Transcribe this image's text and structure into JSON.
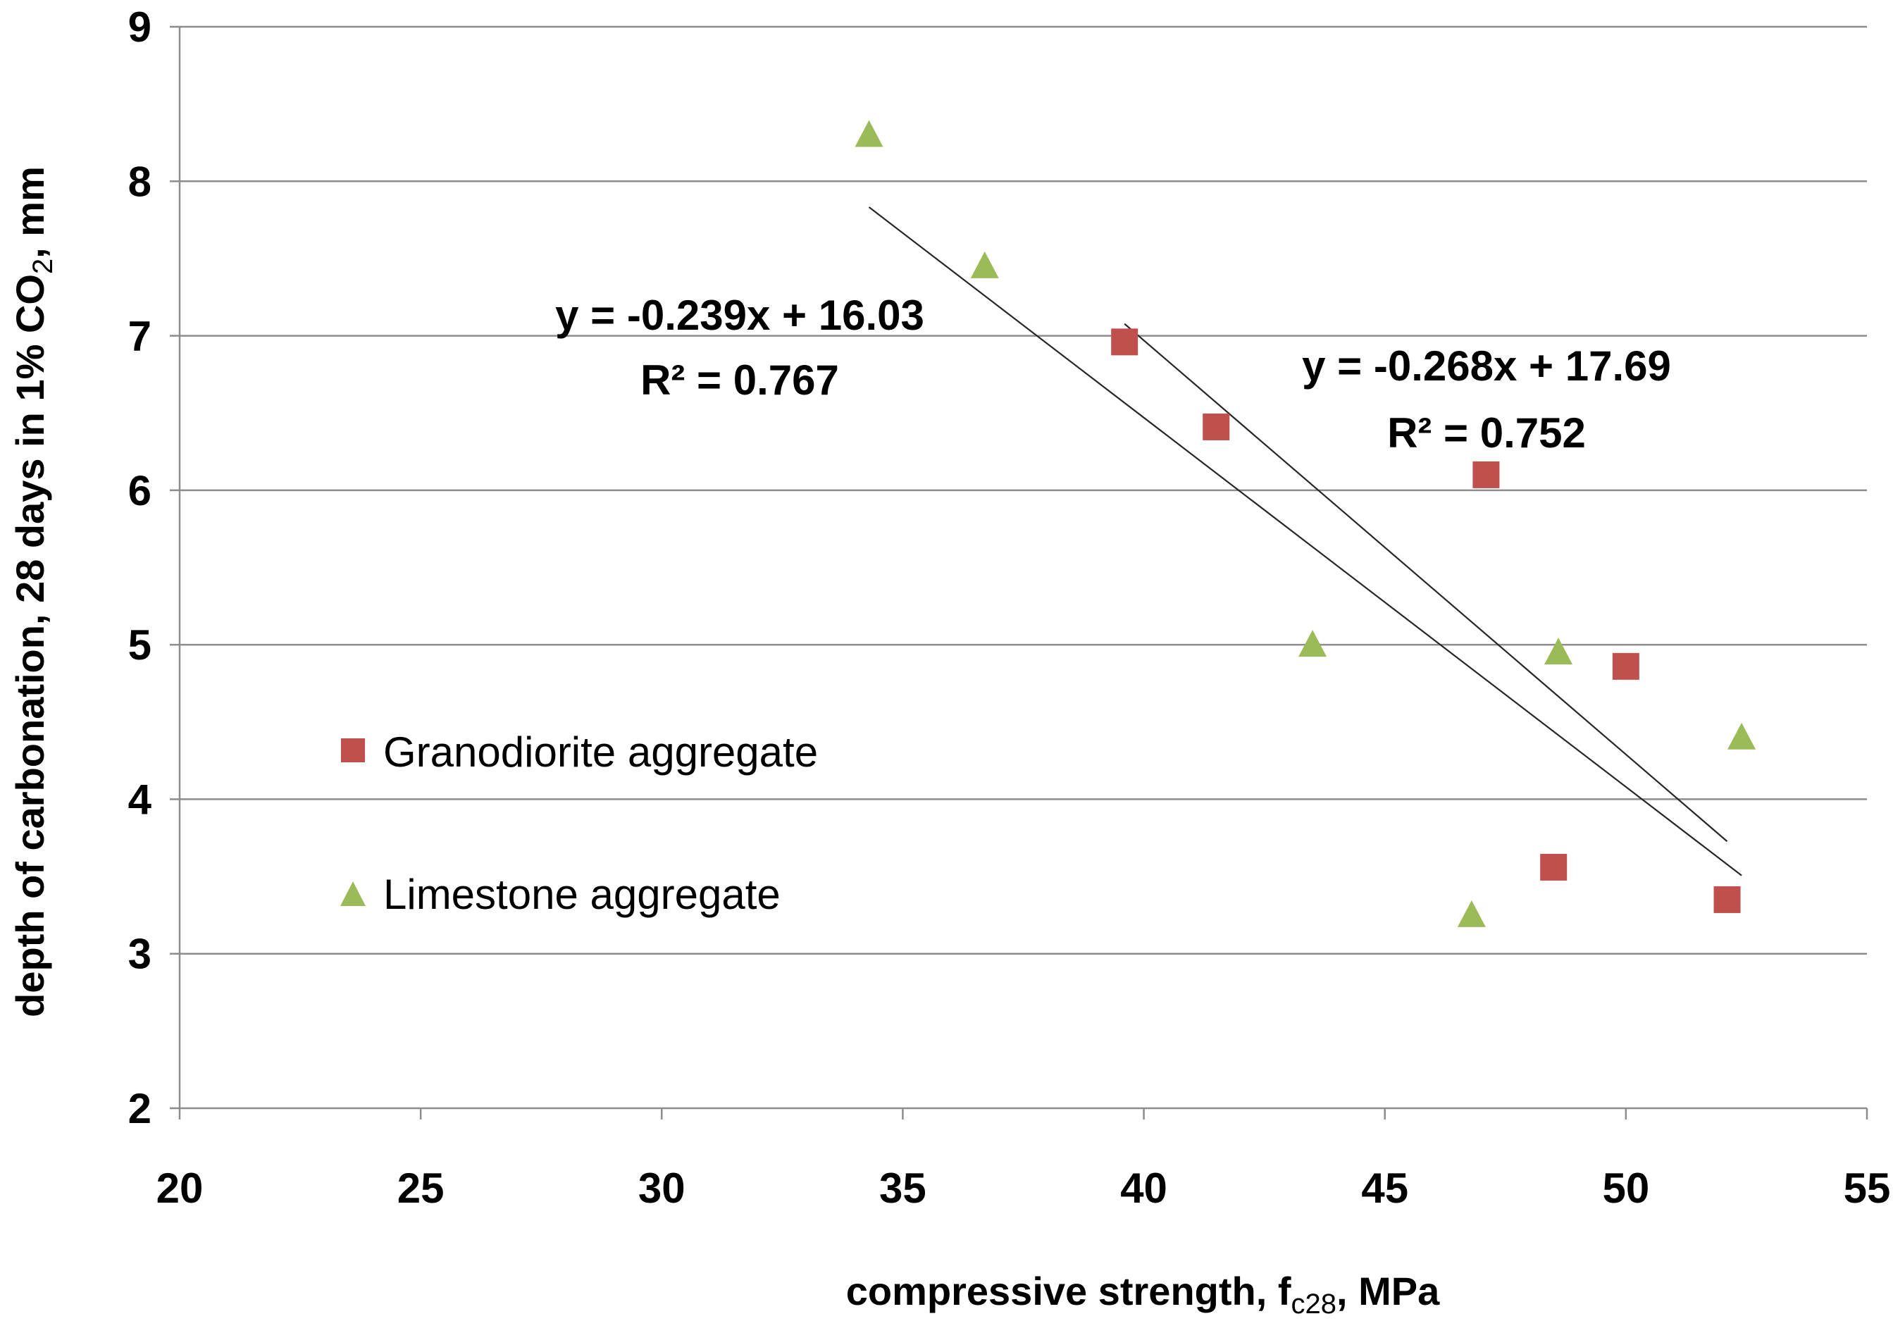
{
  "chart_data": {
    "type": "scatter",
    "title": "",
    "xlabel": {
      "main": "compressive strength, f",
      "sub": "c28",
      "tail": ", MPa"
    },
    "ylabel": {
      "main": "depth of carbonation, 28 days in 1% CO",
      "sub": "2",
      "tail": ", mm"
    },
    "xlim": [
      20,
      55
    ],
    "ylim": [
      2,
      9
    ],
    "xticks": [
      20,
      25,
      30,
      35,
      40,
      45,
      50,
      55
    ],
    "yticks": [
      2,
      3,
      4,
      5,
      6,
      7,
      8,
      9
    ],
    "grid": "horizontal",
    "legend_position": "left-middle",
    "series": [
      {
        "name": "Granodiorite aggregate",
        "marker": "square",
        "color": "#c0504d",
        "points": [
          [
            39.6,
            6.96
          ],
          [
            41.5,
            6.41
          ],
          [
            47.1,
            6.1
          ],
          [
            48.5,
            3.56
          ],
          [
            50.0,
            4.86
          ],
          [
            52.1,
            3.35
          ]
        ],
        "trendline": {
          "slope": -0.268,
          "intercept": 17.69,
          "x_range": [
            39.6,
            52.1
          ],
          "equation": "y = -0.268x + 17.69",
          "r2_label": "R² = 0.752"
        }
      },
      {
        "name": "Limestone aggregate",
        "marker": "triangle",
        "color": "#9bbb59",
        "points": [
          [
            34.3,
            8.3
          ],
          [
            36.7,
            7.45
          ],
          [
            43.5,
            5.0
          ],
          [
            46.8,
            3.25
          ],
          [
            48.6,
            4.95
          ],
          [
            52.4,
            4.4
          ]
        ],
        "trendline": {
          "slope": -0.239,
          "intercept": 16.03,
          "x_range": [
            34.3,
            52.4
          ],
          "equation": "y = -0.239x + 16.03",
          "r2_label": "R² = 0.767"
        }
      }
    ]
  },
  "colors": {
    "grid": "#8c8c8c",
    "axis": "#8c8c8c",
    "trend": "#262626"
  }
}
